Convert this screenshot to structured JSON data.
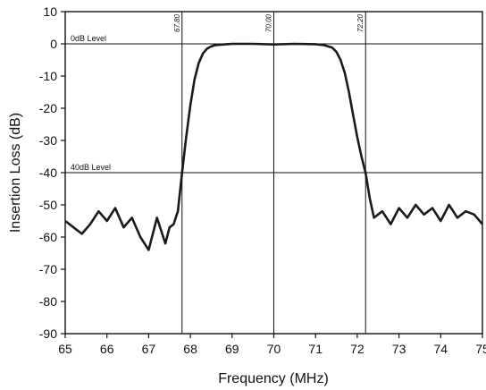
{
  "chart_data": {
    "type": "line",
    "xlabel": "Frequency (MHz)",
    "ylabel": "Insertion Loss (dB)",
    "xlim": [
      65,
      75
    ],
    "ylim": [
      -90,
      10
    ],
    "xticks": [
      65,
      66,
      67,
      68,
      69,
      70,
      71,
      72,
      73,
      74,
      75
    ],
    "yticks": [
      10,
      0,
      -10,
      -20,
      -30,
      -40,
      -50,
      -60,
      -70,
      -80,
      -90
    ],
    "grid": false,
    "reference_lines": [
      {
        "label": "0dB Level",
        "y": 0
      },
      {
        "label": "40dB Level",
        "y": -40
      }
    ],
    "markers": [
      {
        "label": "67.80",
        "x": 67.8
      },
      {
        "label": "70.00",
        "x": 70.0
      },
      {
        "label": "72.20",
        "x": 72.2
      }
    ],
    "series": [
      {
        "color": "#1a1a1a",
        "x": [
          65.0,
          65.2,
          65.4,
          65.6,
          65.8,
          66.0,
          66.2,
          66.4,
          66.6,
          66.8,
          67.0,
          67.2,
          67.4,
          67.5,
          67.6,
          67.7,
          67.8,
          67.9,
          68.0,
          68.1,
          68.2,
          68.3,
          68.4,
          68.5,
          68.6,
          68.8,
          69.0,
          69.5,
          70.0,
          70.5,
          71.0,
          71.2,
          71.4,
          71.5,
          71.6,
          71.7,
          71.8,
          71.9,
          72.0,
          72.1,
          72.2,
          72.3,
          72.4,
          72.6,
          72.8,
          73.0,
          73.2,
          73.4,
          73.6,
          73.8,
          74.0,
          74.2,
          74.4,
          74.6,
          74.8,
          75.0
        ],
        "y": [
          -55,
          -57,
          -59,
          -56,
          -52,
          -55,
          -51,
          -57,
          -54,
          -60,
          -64,
          -54,
          -62,
          -57,
          -56,
          -52,
          -40,
          -29,
          -19,
          -11,
          -6,
          -3,
          -1.5,
          -0.8,
          -0.4,
          -0.2,
          0,
          0,
          -0.2,
          0,
          -0.1,
          -0.4,
          -1.2,
          -2.5,
          -5,
          -9,
          -15,
          -22,
          -29,
          -35,
          -40,
          -48,
          -54,
          -52,
          -56,
          -51,
          -54,
          -50,
          -53,
          -51,
          -55,
          -50,
          -54,
          -52,
          -53,
          -56
        ]
      }
    ]
  }
}
